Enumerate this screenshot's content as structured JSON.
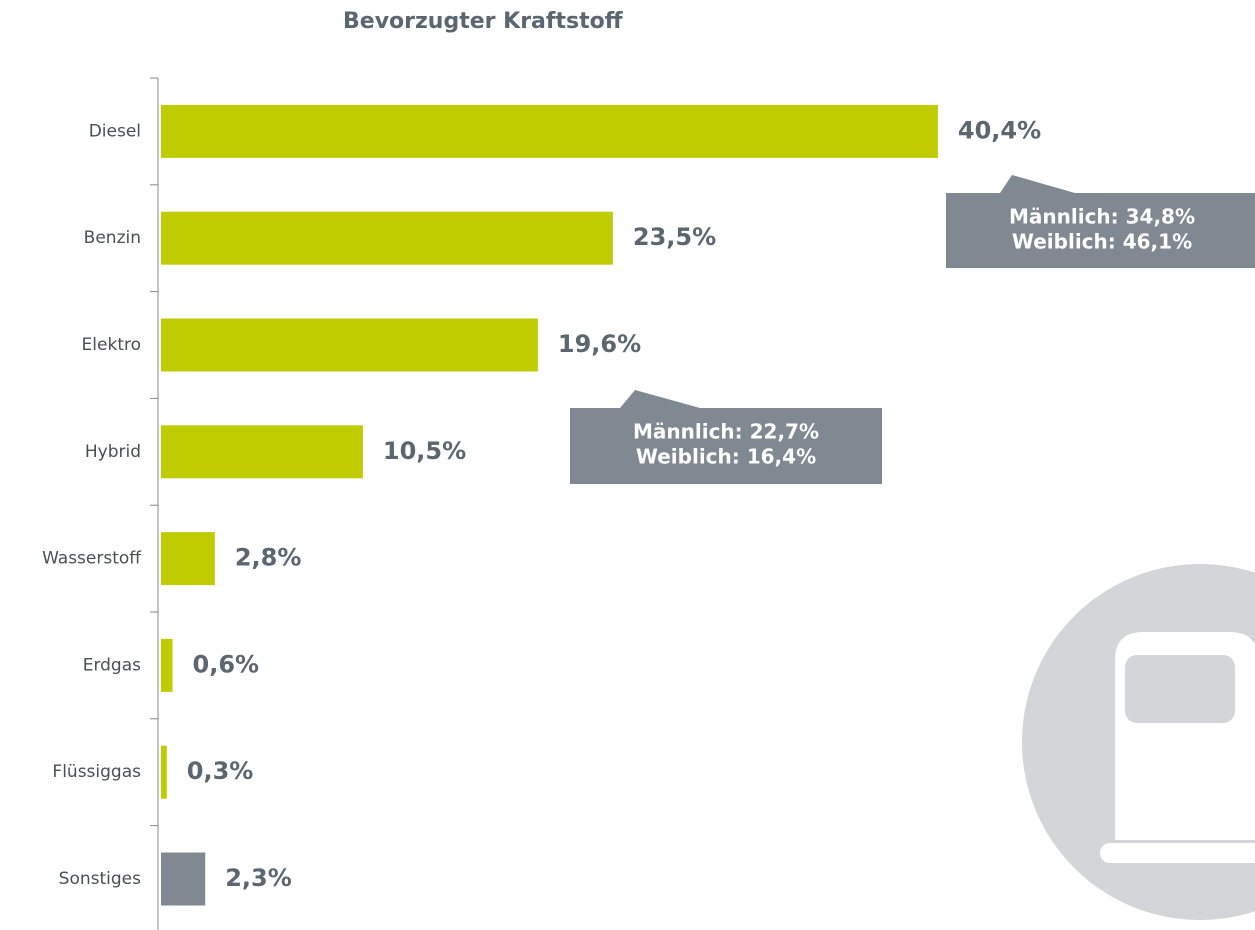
{
  "chart_data": {
    "type": "hbar",
    "title": "Bevorzugter Kraftstoff",
    "categories": [
      "Diesel",
      "Benzin",
      "Elektro",
      "Hybrid",
      "Wasserstoff",
      "Erdgas",
      "Flüssiggas",
      "Sonstiges"
    ],
    "values": [
      40.4,
      23.5,
      19.6,
      10.5,
      2.8,
      0.6,
      0.3,
      2.3
    ],
    "value_labels": [
      "40,4%",
      "23,5%",
      "19,6%",
      "10,5%",
      "2,8%",
      "0,6%",
      "0,3%",
      "2,3%"
    ],
    "colors": [
      "#bfcd00",
      "#bfcd00",
      "#bfcd00",
      "#bfcd00",
      "#bfcd00",
      "#bfcd00",
      "#bfcd00",
      "#808891"
    ],
    "annotations": [
      {
        "lines": [
          "Männlich: 34,8%",
          "Weiblich: 46,1%"
        ]
      },
      {
        "lines": [
          "Männlich: 22,7%",
          "Weiblich: 16,4%"
        ]
      }
    ]
  }
}
